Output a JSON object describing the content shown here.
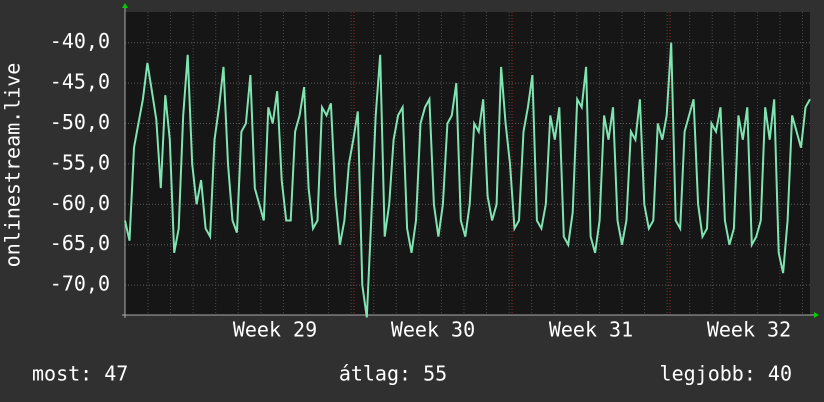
{
  "chart_data": {
    "type": "line",
    "ylabel": "onlinestream.live",
    "ylim": [
      -73.7,
      -36.2
    ],
    "yticks": [
      {
        "value": -40,
        "label": "-40,0"
      },
      {
        "value": -45,
        "label": "-45,0"
      },
      {
        "value": -50,
        "label": "-50,0"
      },
      {
        "value": -55,
        "label": "-55,0"
      },
      {
        "value": -60,
        "label": "-60,0"
      },
      {
        "value": -65,
        "label": "-65,0"
      },
      {
        "value": -70,
        "label": "-70,0"
      }
    ],
    "xticks": [
      "Week 29",
      "Week 30",
      "Week 31",
      "Week 32"
    ],
    "grid": true,
    "color": "#7fe3b2",
    "values": [
      -62,
      -64.5,
      -53,
      -50,
      -47,
      -42.5,
      -46,
      -49.5,
      -58,
      -46.5,
      -52,
      -66,
      -63,
      -49,
      -41.5,
      -55,
      -60,
      -57,
      -63,
      -64,
      -52,
      -48,
      -43,
      -55,
      -62,
      -63.5,
      -51,
      -50,
      -44,
      -58,
      -60,
      -62,
      -48,
      -50,
      -46,
      -57,
      -62,
      -62,
      -51,
      -49,
      -45.5,
      -58,
      -63,
      -62,
      -48,
      -49,
      -47.5,
      -59,
      -65,
      -62,
      -55,
      -52,
      -48.5,
      -70,
      -74,
      -62,
      -49,
      -41.5,
      -64,
      -60,
      -52,
      -49,
      -48,
      -63,
      -66,
      -62,
      -50,
      -48,
      -47,
      -60,
      -64,
      -60,
      -50,
      -49,
      -45,
      -62,
      -64,
      -60,
      -50,
      -51,
      -47,
      -59,
      -62,
      -60,
      -43,
      -50,
      -55,
      -63,
      -62,
      -51,
      -48,
      -44,
      -62,
      -63,
      -60,
      -49,
      -52,
      -48,
      -64,
      -65,
      -61,
      -47,
      -48,
      -43,
      -64,
      -66,
      -62,
      -49,
      -52,
      -48,
      -62,
      -65,
      -62,
      -51,
      -52,
      -47,
      -60,
      -63,
      -62,
      -50,
      -52,
      -49,
      -40,
      -62,
      -63,
      -51,
      -49,
      -47,
      -60,
      -64,
      -63,
      -50,
      -51,
      -48,
      -62,
      -65,
      -63,
      -49,
      -52,
      -48,
      -65,
      -64,
      -62,
      -48,
      -52,
      -47,
      -66,
      -68.5,
      -62,
      -49,
      -51,
      -53,
      -48,
      -47
    ],
    "footer": [
      "most: 47",
      "átlag: 55",
      "legjobb: 40"
    ]
  }
}
